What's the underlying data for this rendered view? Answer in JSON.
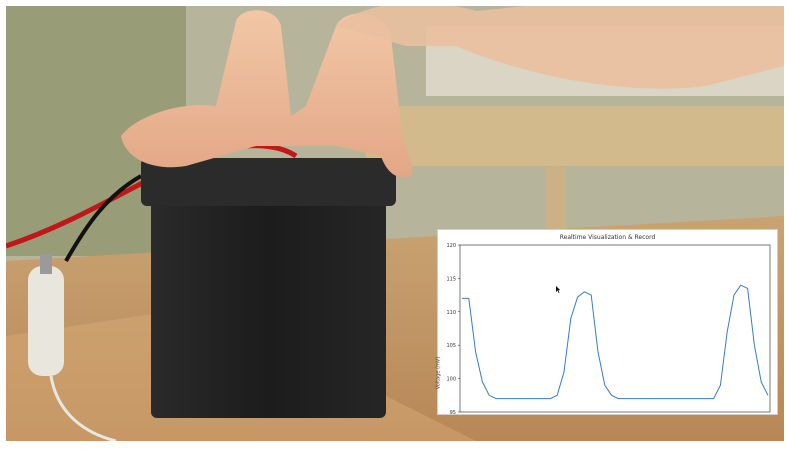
{
  "chart_data": {
    "type": "line",
    "title": "Realtime Visualization & Record",
    "ylabel": "Voltage (mV)",
    "xlabel": "",
    "ylim": [
      95,
      120
    ],
    "yticks": [
      "95",
      "100",
      "105",
      "110",
      "115",
      "120"
    ],
    "series": [
      {
        "color": "#3b7bbf",
        "values": [
          112,
          112,
          104,
          99.5,
          97.5,
          97,
          97,
          97,
          97,
          97,
          97,
          97,
          97,
          97,
          97.5,
          101,
          109,
          112.2,
          113,
          112.5,
          104,
          99,
          97.5,
          97,
          97,
          97,
          97,
          97,
          97,
          97,
          97,
          97,
          97,
          97,
          97,
          97,
          97,
          97,
          99,
          107,
          112.5,
          114,
          113.5,
          105,
          99.5,
          97.5
        ]
      }
    ]
  },
  "colors": {
    "line": "#3b7bbf",
    "panel_bg": "#ffffff"
  }
}
